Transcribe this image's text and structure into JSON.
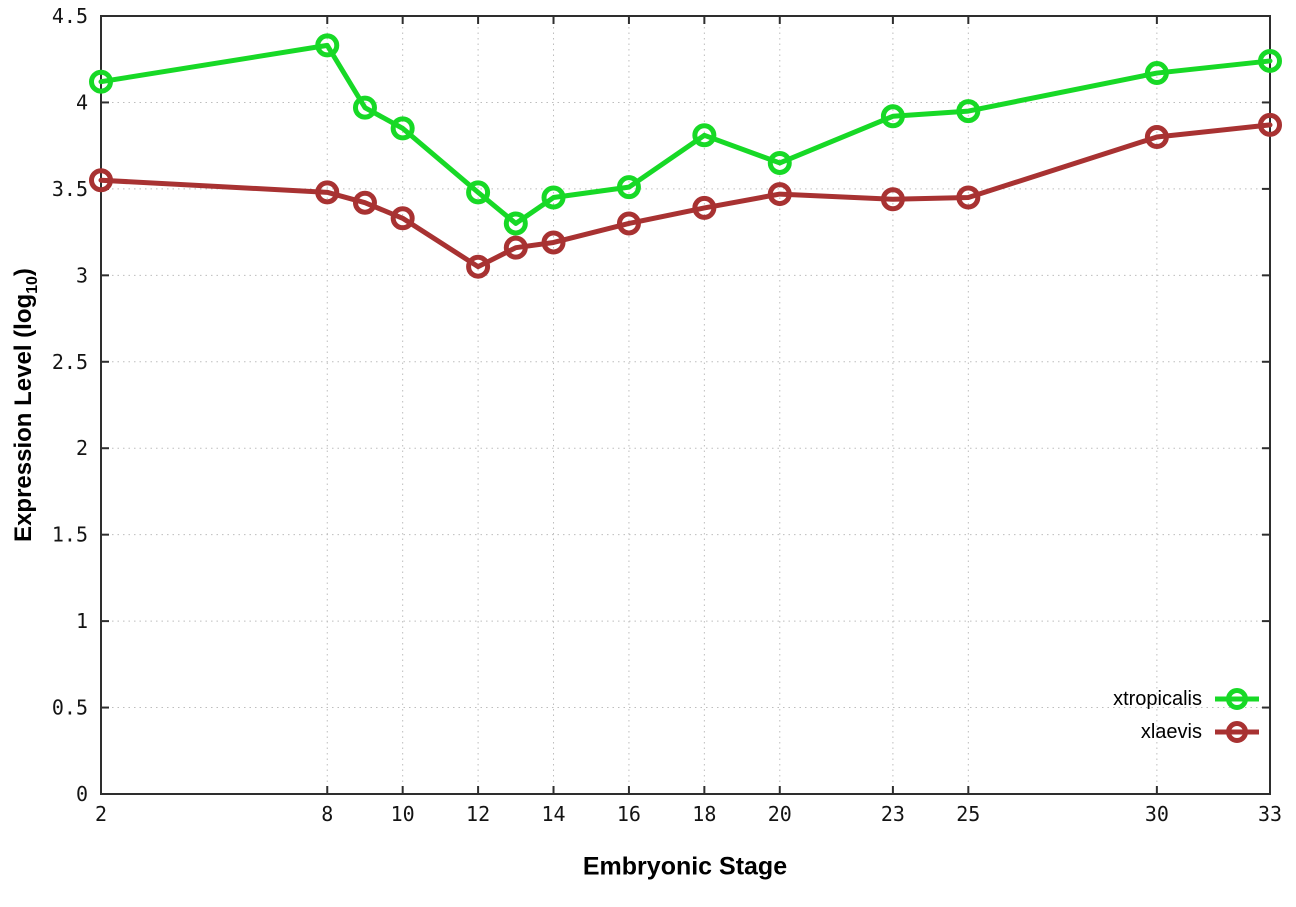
{
  "chart_data": {
    "type": "line",
    "title": "",
    "xlabel": "Embryonic Stage",
    "ylabel": "Expression Level (log10)",
    "ylabel_parts": {
      "main": "Expression Level (log",
      "sub": "10",
      "suffix": ")"
    },
    "x": [
      2,
      8,
      9,
      10,
      12,
      13,
      14,
      16,
      18,
      20,
      23,
      25,
      30,
      33
    ],
    "series": [
      {
        "name": "xtropicalis",
        "color": "#17d926",
        "values": [
          4.12,
          4.33,
          3.97,
          3.85,
          3.48,
          3.3,
          3.45,
          3.51,
          3.81,
          3.65,
          3.92,
          3.95,
          4.17,
          4.24
        ]
      },
      {
        "name": "xlaevis",
        "color": "#a83232",
        "values": [
          3.55,
          3.48,
          3.42,
          3.33,
          3.05,
          3.16,
          3.19,
          3.3,
          3.39,
          3.47,
          3.44,
          3.45,
          3.8,
          3.87
        ]
      }
    ],
    "xlim": [
      2,
      33
    ],
    "ylim": [
      0,
      4.5
    ],
    "xticks": {
      "values": [
        2,
        8,
        10,
        12,
        14,
        16,
        18,
        20,
        23,
        25,
        30,
        33
      ],
      "labels": [
        "2",
        "8",
        "10",
        "12",
        "14",
        "16",
        "18",
        "20",
        "23",
        "25",
        "30",
        "33"
      ]
    },
    "yticks": {
      "values": [
        0,
        0.5,
        1,
        1.5,
        2,
        2.5,
        3,
        3.5,
        4,
        4.5
      ],
      "labels": [
        "0",
        "0.5",
        "1",
        "1.5",
        "2",
        "2.5",
        "3",
        "3.5",
        "4",
        "4.5"
      ]
    },
    "grid": true,
    "legend_position": "inside-bottom-right"
  },
  "styles": {
    "background": "#ffffff",
    "grid_color": "#bdbdbd",
    "border_color": "#2e2e2e",
    "tick_label_color": "#141414"
  }
}
